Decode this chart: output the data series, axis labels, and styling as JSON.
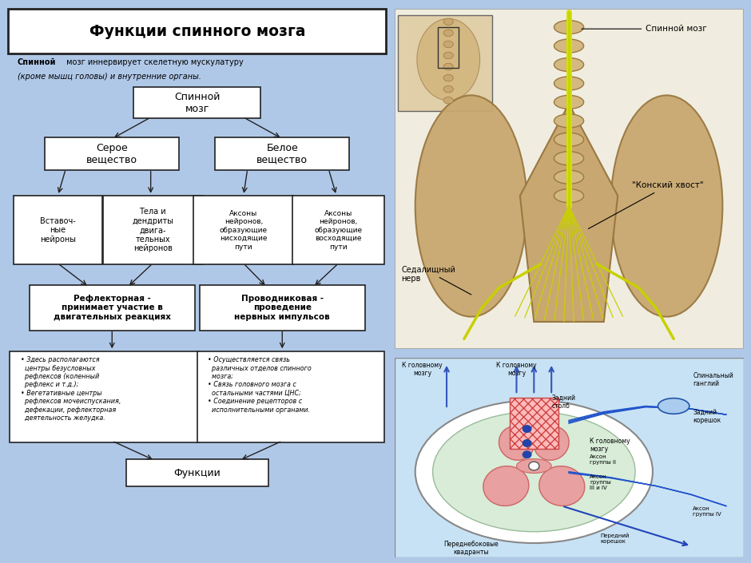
{
  "background_color": "#b0c8e8",
  "left_panel_bg": "#d8d4c8",
  "left_panel_border": "#222222",
  "title": "Функции спинного мозга",
  "subtitle_bold": "Спинной",
  "subtitle": " мозг иннервирует скелетную мускулатуру\n(кроме мышц головы) и внутренние органы.",
  "node_root": "Спинной\nмозг",
  "node_grey": "Серое\nвещество",
  "node_white": "Белое\nвещество",
  "node_n1": "Вставоч-\nные\nнейроны",
  "node_n2": "Тела и\nдендриты\nдвига-\nтельных\nнейронов",
  "node_n3": "Аксоны\nнейронов,\nобразующие\nнисходящие\nпути",
  "node_n4": "Аксоны\nнейронов,\nобразующие\nвосходящие\nпути",
  "node_f1": "Рефлекторная -\nпринимает участие в\nдвигательных реакциях",
  "node_f2": "Проводниковая -\nпроведение\nнервных импульсов",
  "node_d1": "• Здесь располагаются\n  центры безусловных\n  рефлексов (коленный\n  рефлекс и т.д.);\n• Вегетативные центры\n  рефлексов мочеиспускания,\n  дефекации, рефлекторная\n  деятельность желудка.",
  "node_d2": "• Осуществляется связь\n  различных отделов спинного\n  мозга;\n• Связь головного мозга с\n  остальными частями ЦНС;\n• Соединение рецепторов с\n  исполнительными органами.",
  "node_func": "Функции",
  "tr_label_cord": "Спинной мозг",
  "tr_label_cauda": "\"Конский хвост\"",
  "tr_label_sciatic": "Седалищный\nнерв",
  "br_label_brain1": "К головному\nмозгу",
  "br_label_brain2": "К головному\nмозгу",
  "br_label_brain3": "К головному\nмозгу",
  "br_label_post_col": "Задний\nстолб",
  "br_label_ganglion": "Спинальный\nганглий",
  "br_label_post_root": "Задний\nкорешок",
  "br_label_axon2": "Аксон\nгруппы II",
  "br_label_axon34": "Аксон\nгруппы\nIII и IV",
  "br_label_axon4": "Аксон\nгруппы IV",
  "br_label_ant_root": "Передний\nкорешок",
  "br_label_anterolat": "Переднебоковые\nквадранты"
}
